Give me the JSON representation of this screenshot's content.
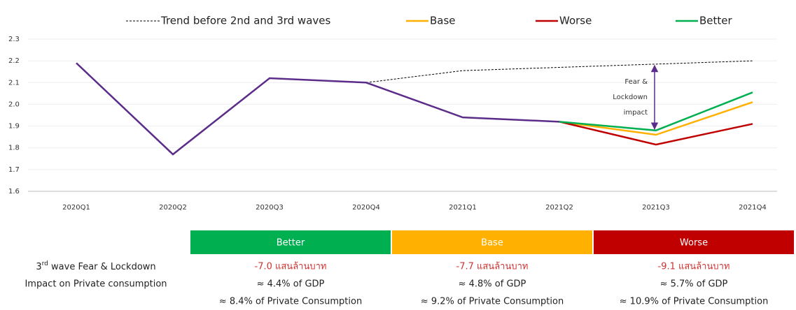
{
  "chart_data": {
    "type": "line",
    "categories": [
      "2020Q1",
      "2020Q2",
      "2020Q3",
      "2020Q4",
      "2021Q1",
      "2021Q2",
      "2021Q3",
      "2021Q4"
    ],
    "series": [
      {
        "name": "Trend before 2nd and 3rd waves",
        "color": "#000000",
        "dashed": true,
        "values": [
          null,
          null,
          null,
          2.1,
          2.155,
          2.17,
          2.185,
          2.2
        ]
      },
      {
        "name": "Base",
        "color": "#ffb000",
        "values": [
          null,
          null,
          null,
          null,
          null,
          1.92,
          1.86,
          2.01
        ]
      },
      {
        "name": "Worse",
        "color": "#c00000",
        "values": [
          null,
          null,
          null,
          null,
          null,
          1.92,
          1.815,
          1.91
        ]
      },
      {
        "name": "Better",
        "color": "#00b050",
        "values": [
          null,
          null,
          null,
          null,
          null,
          1.92,
          1.88,
          2.055
        ]
      },
      {
        "color": "#5b2c8a",
        "values": [
          2.19,
          1.77,
          2.12,
          2.1,
          1.94,
          1.92,
          null,
          null
        ]
      }
    ],
    "ylim": [
      1.6,
      2.3
    ],
    "yticks": [
      1.6,
      1.7,
      1.8,
      1.9,
      {
        "value": 2,
        "label": "2.0"
      },
      2.1,
      2.2,
      2.3
    ],
    "grid": true,
    "legend": "top",
    "annotation": {
      "lines": [
        "Fear &",
        "Lockdown",
        "impact"
      ],
      "from": 2.185,
      "to": 1.88,
      "category": 6
    }
  },
  "table": {
    "row_label": {
      "base": "3",
      "sup": "rd",
      "rest": " wave Fear & Lockdown",
      "second": "Impact on Private consumption"
    },
    "columns": [
      {
        "label": "Better",
        "color": "#00b050",
        "lines": [
          "-7.0 แสนล้านบาท",
          "≈ 4.4% of GDP",
          "≈ 8.4% of Private Consumption"
        ]
      },
      {
        "label": "Base",
        "color": "#ffb000",
        "lines": [
          "-7.7 แสนล้านบาท",
          "≈ 4.8% of GDP",
          "≈ 9.2% of Private Consumption"
        ]
      },
      {
        "label": "Worse",
        "color": "#c00000",
        "lines": [
          "-9.1 แสนล้านบาท",
          "≈ 5.7% of GDP",
          "≈ 10.9% of Private Consumption"
        ]
      }
    ]
  }
}
